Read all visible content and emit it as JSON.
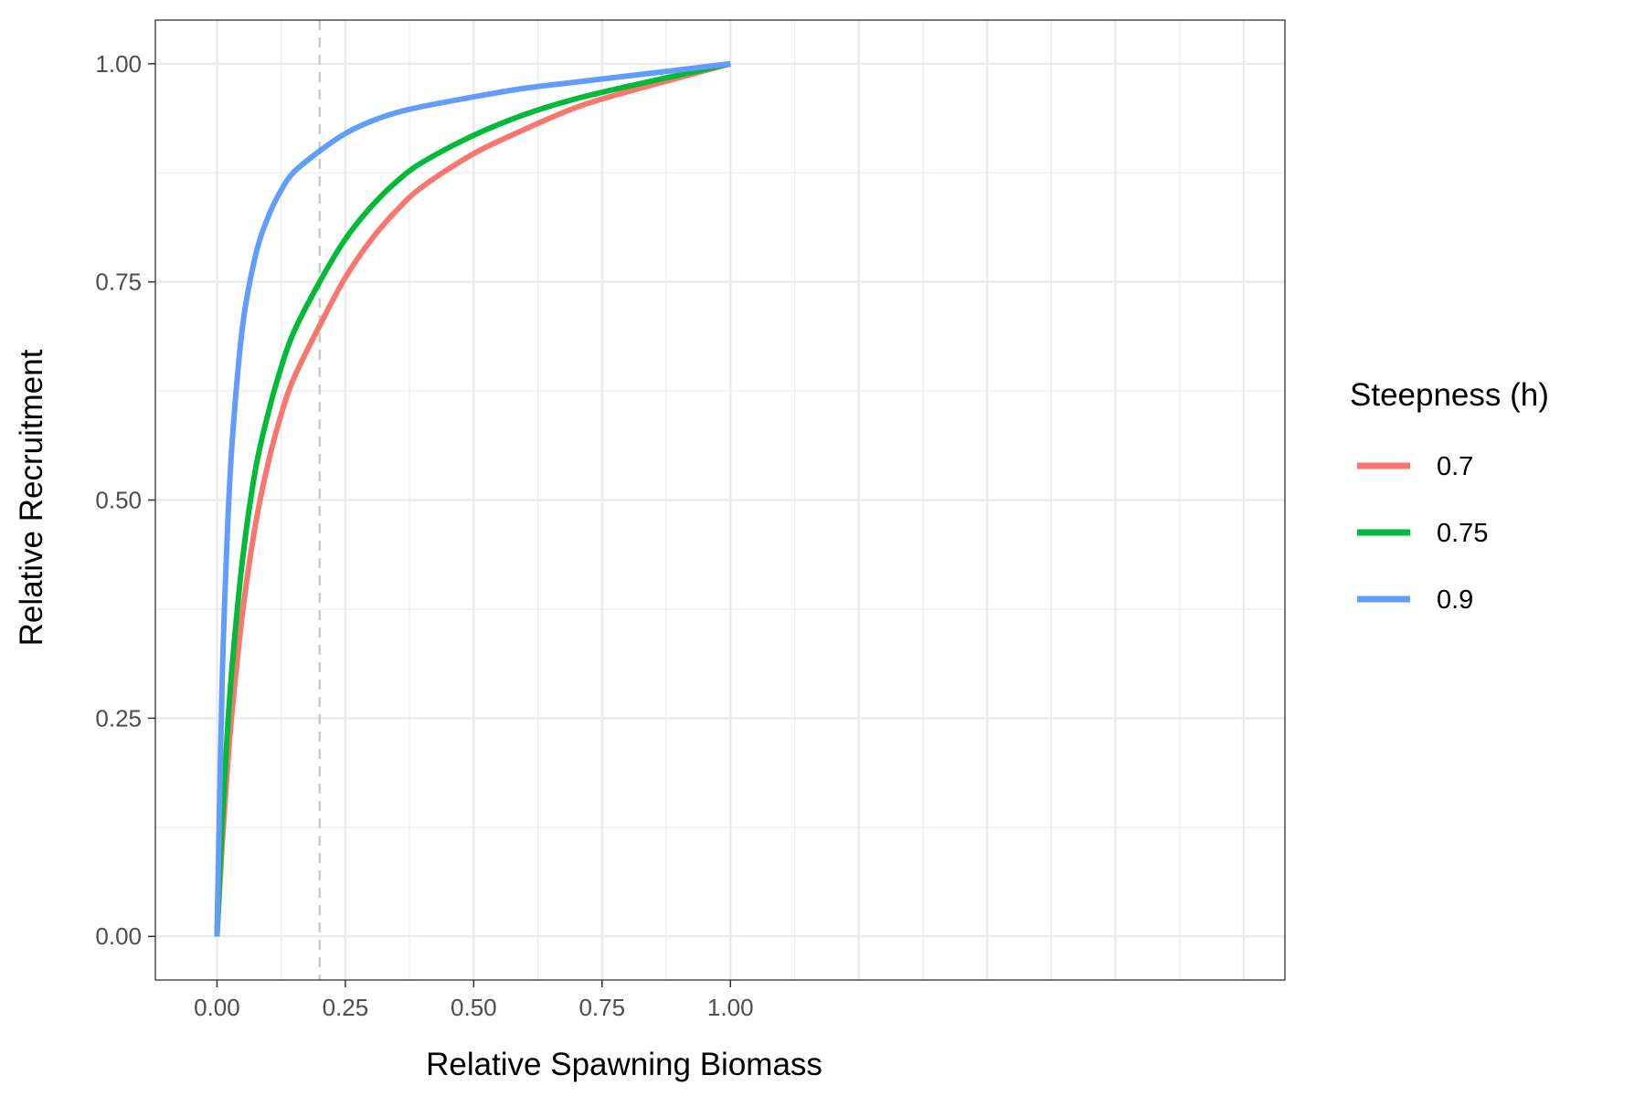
{
  "chart_data": {
    "type": "line",
    "xlabel": "Relative Spawning Biomass",
    "ylabel": "Relative Recruitment",
    "xlim": [
      -0.12,
      2.08
    ],
    "ylim": [
      -0.05,
      1.05
    ],
    "xticks": [
      0,
      0.25,
      0.5,
      0.75,
      1
    ],
    "xtick_labels": [
      "0.00",
      "0.25",
      "0.50",
      "0.75",
      "1.00"
    ],
    "yticks": [
      0,
      0.25,
      0.5,
      0.75,
      1
    ],
    "ytick_labels": [
      "0.00",
      "0.25",
      "0.50",
      "0.75",
      "1.00"
    ],
    "grid": true,
    "reference_line": {
      "x": 0.2,
      "style": "dashed",
      "color": "#cccccc"
    },
    "legend": {
      "title": "Steepness (h)",
      "placement": "right",
      "entries": [
        "0.7",
        "0.75",
        "0.9"
      ]
    },
    "x": [
      0,
      0.01,
      0.02,
      0.03,
      0.05,
      0.075,
      0.1,
      0.125,
      0.15,
      0.2,
      0.25,
      0.3,
      0.35,
      0.4,
      0.5,
      0.6,
      0.7,
      0.8,
      0.9,
      1.0
    ],
    "series": [
      {
        "name": "0.7",
        "color": "#F8766D",
        "values": [
          0,
          0.104,
          0.19,
          0.261,
          0.372,
          0.472,
          0.543,
          0.598,
          0.64,
          0.7,
          0.755,
          0.798,
          0.832,
          0.859,
          0.897,
          0.925,
          0.95,
          0.968,
          0.984,
          1.0
        ]
      },
      {
        "name": "0.75",
        "color": "#00BA38",
        "values": [
          0,
          0.13,
          0.232,
          0.313,
          0.433,
          0.535,
          0.6,
          0.652,
          0.693,
          0.75,
          0.799,
          0.836,
          0.865,
          0.887,
          0.918,
          0.942,
          0.96,
          0.974,
          0.987,
          1.0
        ]
      },
      {
        "name": "0.9",
        "color": "#619CFF",
        "values": [
          0,
          0.29,
          0.459,
          0.57,
          0.7,
          0.78,
          0.825,
          0.855,
          0.876,
          0.9,
          0.92,
          0.934,
          0.944,
          0.951,
          0.962,
          0.972,
          0.979,
          0.986,
          0.993,
          1.0
        ]
      }
    ]
  }
}
